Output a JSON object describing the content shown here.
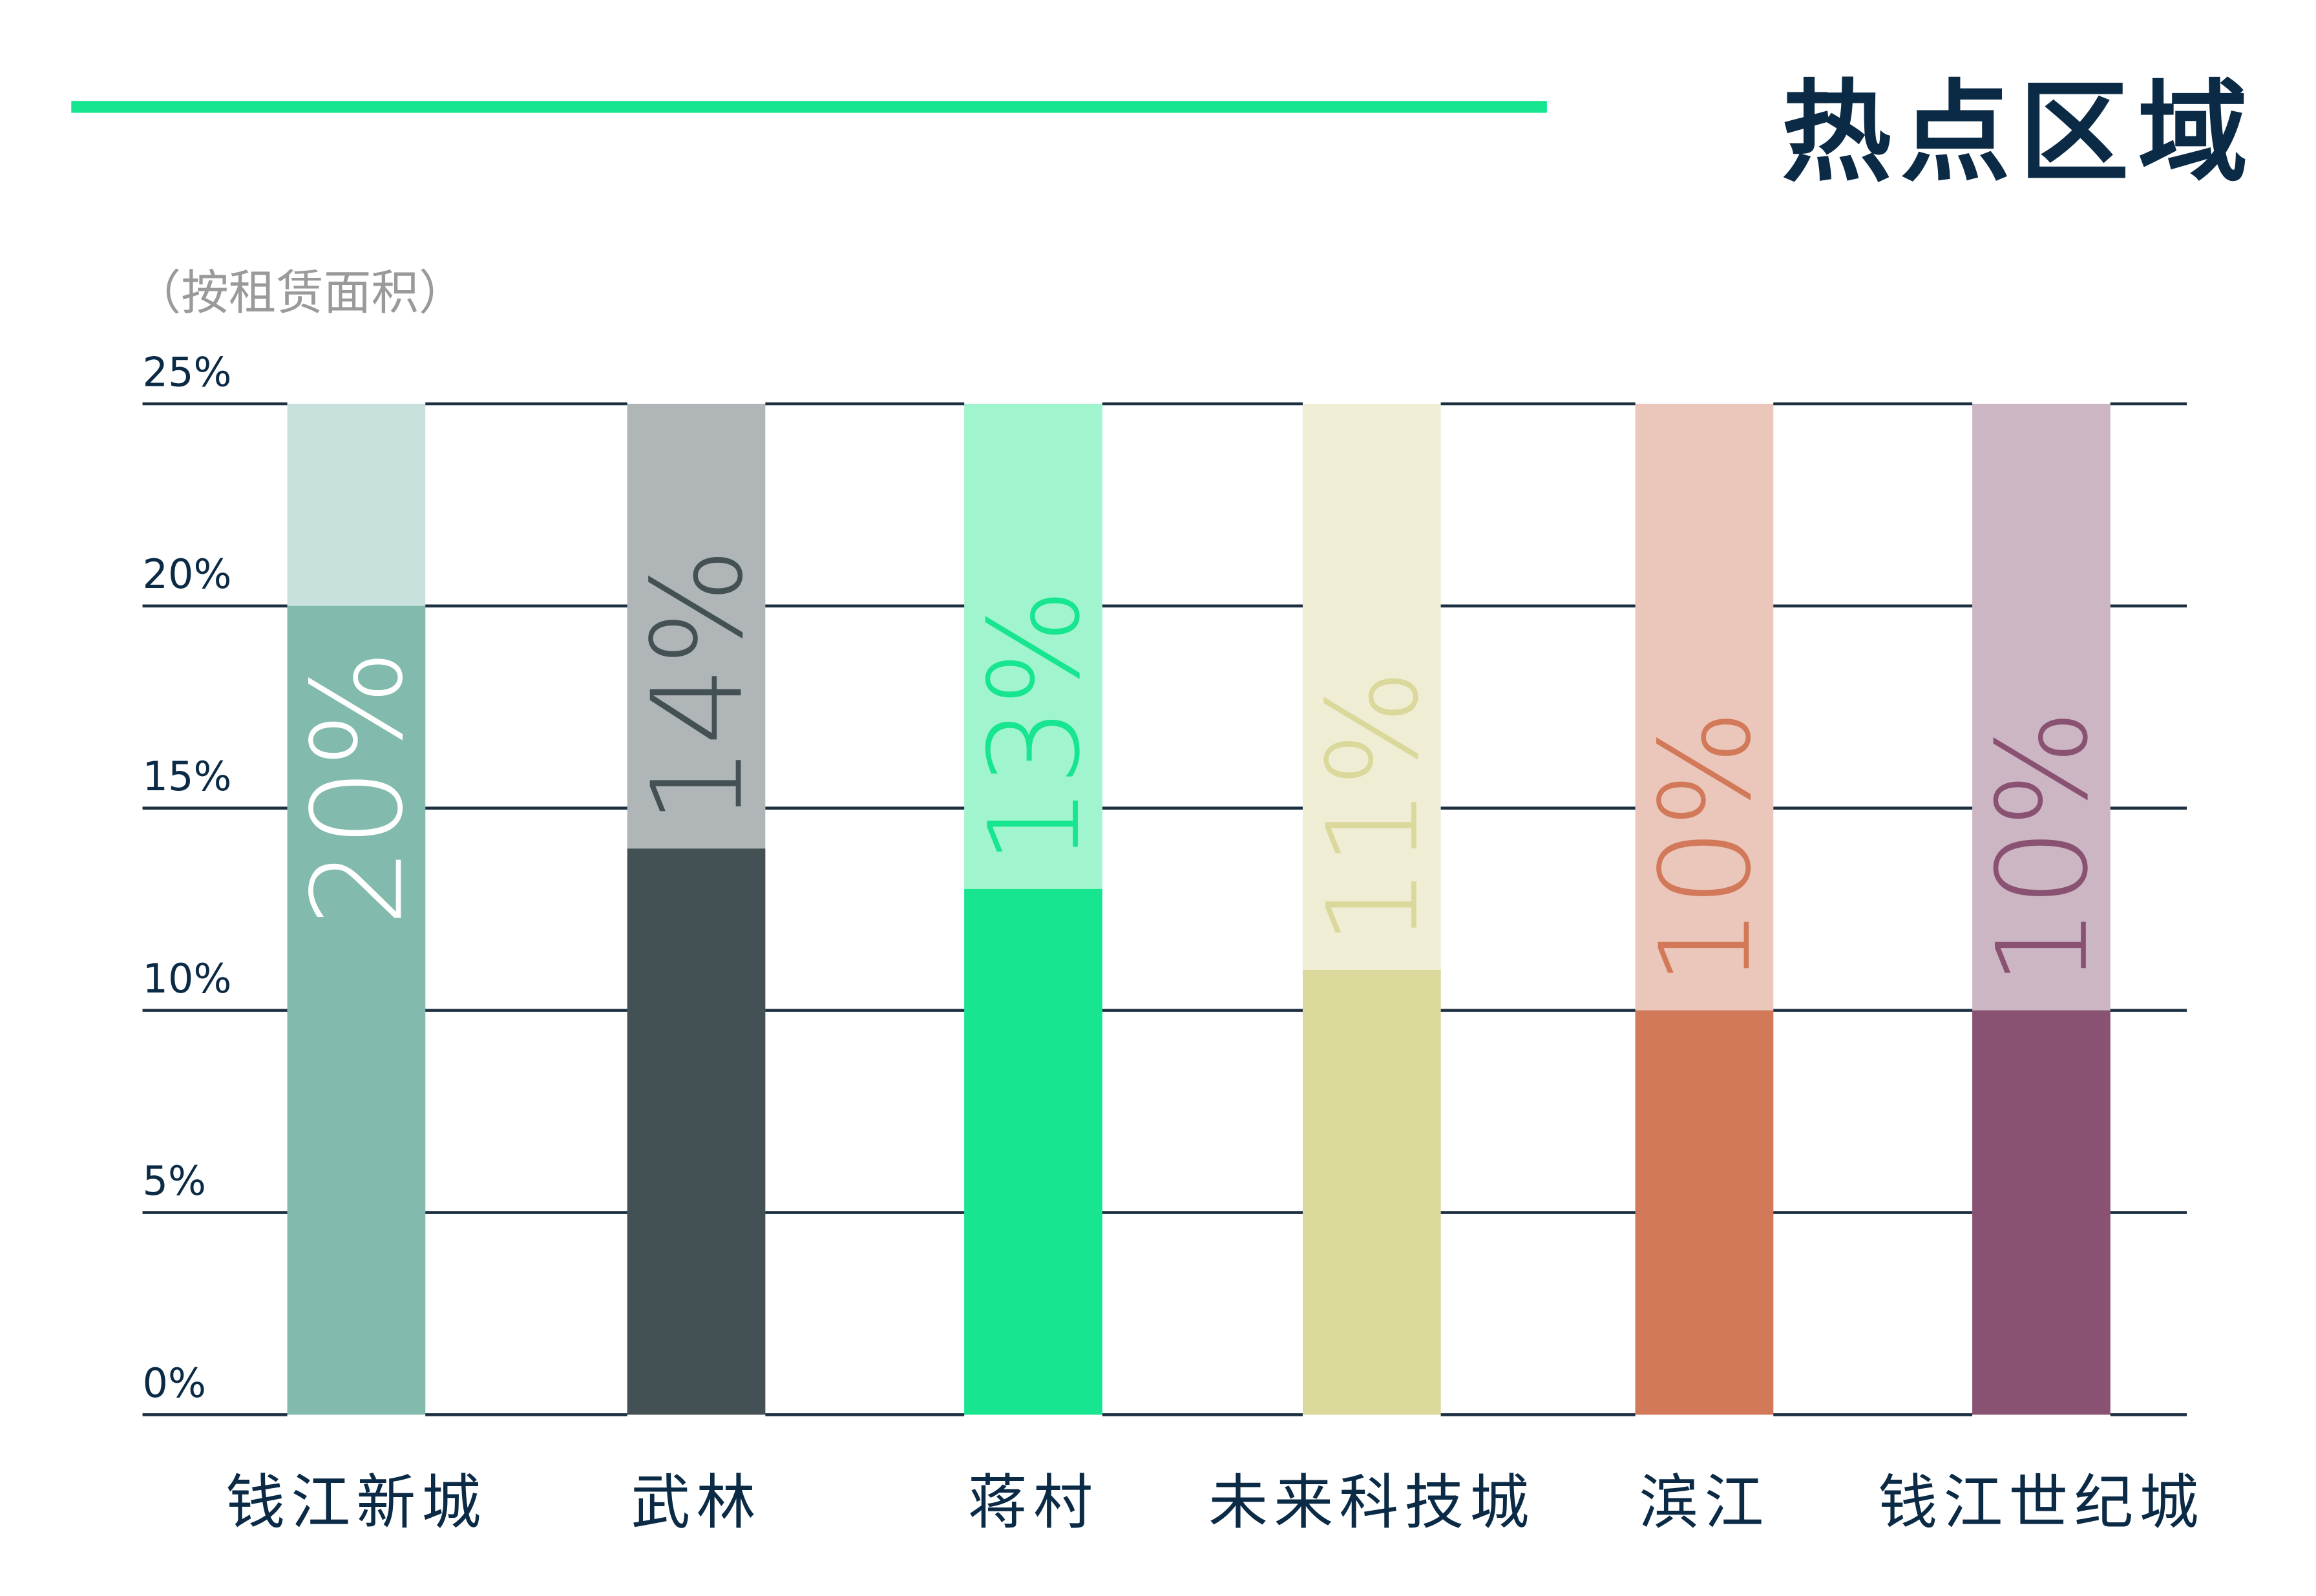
{
  "header": {
    "title": "热点区域",
    "accent_color": "#18e58f"
  },
  "chart_data": {
    "type": "bar",
    "title": "热点区域",
    "subtitle": "（按租赁面积）",
    "categories": [
      "钱江新城",
      "武林",
      "蒋村",
      "未来科技城",
      "滨江",
      "钱江世纪城"
    ],
    "values": [
      20,
      14,
      13,
      11,
      10,
      10
    ],
    "data_labels": [
      "20%",
      "14%",
      "13%",
      "11%",
      "10%",
      "10%"
    ],
    "ylim": [
      0,
      25
    ],
    "yticks": [
      "0%",
      "5%",
      "10%",
      "15%",
      "20%",
      "25%"
    ],
    "grid": true,
    "colors": [
      "#82bbad",
      "#435155",
      "#18e58f",
      "#dad89a",
      "#d2795a",
      "#8a5272"
    ],
    "background_colors": [
      "#c8e1dd",
      "#b0b5b7",
      "#a0f5cf",
      "#efeed5",
      "#ebc6ba",
      "#cdb6c3"
    ],
    "grid_color": "#1c3042",
    "tick_color": "#0b2a45"
  }
}
